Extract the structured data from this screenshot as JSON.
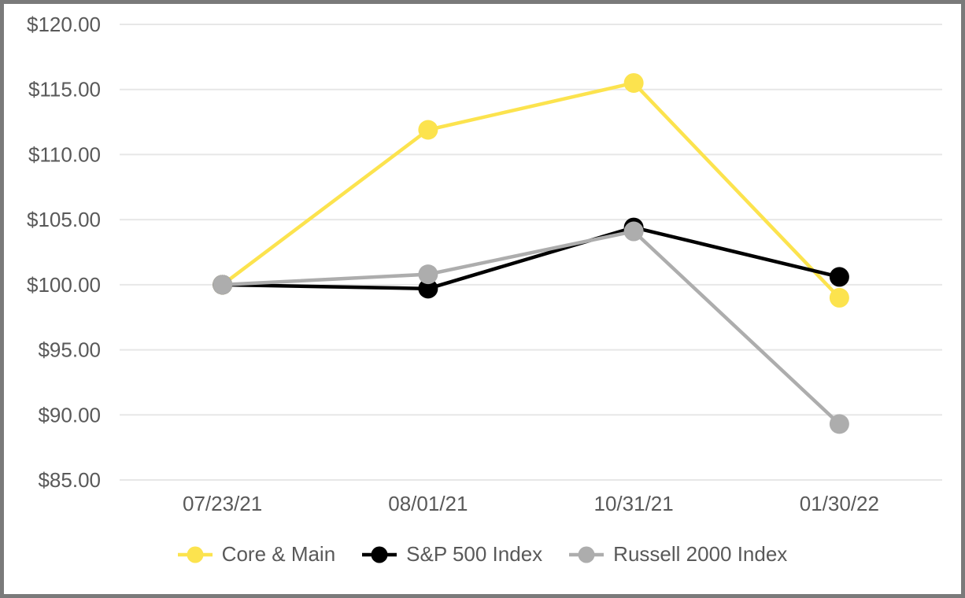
{
  "frame": {
    "background": "#FFFFFF",
    "border_color": "#7A7A7A"
  },
  "chart_data": {
    "type": "line",
    "title": "",
    "categories": [
      "07/23/21",
      "08/01/21",
      "10/31/21",
      "01/30/22"
    ],
    "series": [
      {
        "name": "Core & Main",
        "color": "#FCE34E",
        "values": [
          100.0,
          111.9,
          115.5,
          99.0
        ]
      },
      {
        "name": "S&P 500 Index",
        "color": "#000000",
        "values": [
          100.0,
          99.7,
          104.4,
          100.6
        ]
      },
      {
        "name": "Russell 2000 Index",
        "color": "#ADADAD",
        "values": [
          100.0,
          100.8,
          104.1,
          89.3
        ]
      }
    ],
    "ylim": [
      85,
      120
    ],
    "y_ticks": [
      {
        "value": 120,
        "label": "$120.00"
      },
      {
        "value": 115,
        "label": "$115.00"
      },
      {
        "value": 110,
        "label": "$110.00"
      },
      {
        "value": 105,
        "label": "$105.00"
      },
      {
        "value": 100,
        "label": "$100.00"
      },
      {
        "value": 95,
        "label": "$95.00"
      },
      {
        "value": 90,
        "label": "$90.00"
      },
      {
        "value": 85,
        "label": "$85.00"
      }
    ],
    "xlabel": "",
    "ylabel": "",
    "grid": "horizontal",
    "gridline_color": "#E7E7E7",
    "axis_text_color": "#595959",
    "legend_position": "bottom",
    "marker": "circle"
  }
}
